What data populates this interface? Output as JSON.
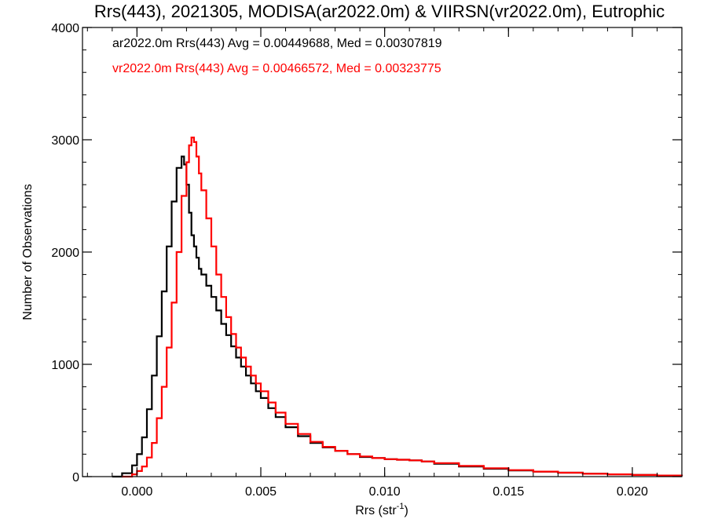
{
  "chart_data": {
    "type": "line",
    "title": "Rrs(443), 2021305, MODISA(ar2022.0m) & VIIRSN(vr2022.0m), Eutrophic",
    "xlabel": "Rrs (str",
    "xlabel_sup": "-1",
    "xlabel_close": ")",
    "ylabel": "Number of Observations",
    "xlim": [
      -0.0022,
      0.022
    ],
    "ylim": [
      0,
      4000
    ],
    "x_ticks": [
      {
        "value": 0.0,
        "label": "0.000"
      },
      {
        "value": 0.005,
        "label": "0.005"
      },
      {
        "value": 0.01,
        "label": "0.010"
      },
      {
        "value": 0.015,
        "label": "0.015"
      },
      {
        "value": 0.02,
        "label": "0.020"
      }
    ],
    "y_ticks": [
      {
        "value": 0,
        "label": "0"
      },
      {
        "value": 1000,
        "label": "1000"
      },
      {
        "value": 2000,
        "label": "2000"
      },
      {
        "value": 3000,
        "label": "3000"
      },
      {
        "value": 4000,
        "label": "4000"
      }
    ],
    "x_minor_step": 0.001,
    "y_minor_step": 200,
    "legend_position": "top-left",
    "series": [
      {
        "name": "ar2022.0m Rrs(443) Avg = 0.00449688, Med = 0.00307819",
        "color": "#000000",
        "x": [
          -0.001,
          -0.0006,
          -0.0002,
          0.0,
          0.0002,
          0.0004,
          0.0006,
          0.0008,
          0.001,
          0.0012,
          0.0014,
          0.0016,
          0.0018,
          0.0019,
          0.002,
          0.0021,
          0.0022,
          0.0023,
          0.0024,
          0.0025,
          0.0026,
          0.0028,
          0.003,
          0.0032,
          0.0034,
          0.0036,
          0.0038,
          0.004,
          0.0042,
          0.0044,
          0.0046,
          0.0048,
          0.005,
          0.0053,
          0.0056,
          0.006,
          0.0065,
          0.007,
          0.0075,
          0.008,
          0.0085,
          0.009,
          0.0095,
          0.01,
          0.0105,
          0.011,
          0.0115,
          0.012,
          0.013,
          0.014,
          0.015,
          0.016,
          0.017,
          0.018,
          0.019,
          0.02,
          0.021,
          0.022
        ],
        "y": [
          0,
          30,
          100,
          200,
          350,
          600,
          900,
          1250,
          1650,
          2050,
          2450,
          2750,
          2850,
          2780,
          2600,
          2350,
          2150,
          2050,
          1950,
          1850,
          1800,
          1700,
          1600,
          1480,
          1360,
          1260,
          1160,
          1060,
          980,
          900,
          830,
          760,
          700,
          610,
          530,
          440,
          360,
          300,
          260,
          230,
          200,
          175,
          165,
          155,
          150,
          145,
          135,
          115,
          90,
          70,
          55,
          45,
          35,
          25,
          20,
          15,
          10,
          5
        ]
      },
      {
        "name": "vr2022.0m Rrs(443) Avg = 0.00466572, Med = 0.00323775",
        "color": "#ff0000",
        "x": [
          -0.0006,
          -0.0002,
          0.0,
          0.0002,
          0.0004,
          0.0006,
          0.0008,
          0.001,
          0.0012,
          0.0014,
          0.0016,
          0.0018,
          0.002,
          0.0021,
          0.0022,
          0.0023,
          0.0024,
          0.0025,
          0.0026,
          0.0028,
          0.003,
          0.0032,
          0.0034,
          0.0036,
          0.0038,
          0.004,
          0.0042,
          0.0044,
          0.0046,
          0.0048,
          0.005,
          0.0053,
          0.0056,
          0.006,
          0.0065,
          0.007,
          0.0075,
          0.008,
          0.0085,
          0.009,
          0.0095,
          0.01,
          0.0105,
          0.011,
          0.0115,
          0.012,
          0.013,
          0.014,
          0.015,
          0.016,
          0.017,
          0.018,
          0.019,
          0.02,
          0.021,
          0.022
        ],
        "y": [
          0,
          20,
          50,
          90,
          170,
          300,
          520,
          800,
          1150,
          1550,
          2000,
          2500,
          2800,
          2950,
          3020,
          2980,
          2850,
          2700,
          2550,
          2300,
          2050,
          1800,
          1600,
          1420,
          1270,
          1150,
          1060,
          980,
          900,
          830,
          760,
          660,
          570,
          470,
          380,
          310,
          265,
          230,
          200,
          180,
          165,
          155,
          150,
          145,
          135,
          120,
          95,
          75,
          58,
          45,
          35,
          25,
          20,
          15,
          10,
          5
        ]
      }
    ]
  }
}
